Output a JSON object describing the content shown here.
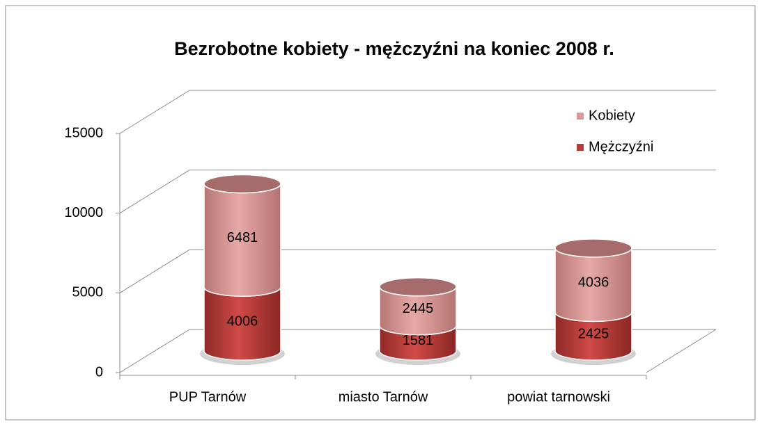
{
  "chart_data": {
    "type": "bar3d-cylinder-stacked",
    "title": "Bezrobotne kobiety - mężczyźni na koniec 2008 r.",
    "categories": [
      "PUP Tarnów",
      "miasto Tarnów",
      "powiat tarnowski"
    ],
    "series": [
      {
        "name": "Mężczyźni",
        "color": "#b93a37",
        "values": [
          4006,
          1581,
          2425
        ]
      },
      {
        "name": "Kobiety",
        "color": "#d99a98",
        "values": [
          6481,
          2445,
          4036
        ]
      }
    ],
    "ylim": [
      0,
      15000
    ],
    "yticks": [
      0,
      5000,
      10000,
      15000
    ],
    "grid": true,
    "legend": "right"
  }
}
